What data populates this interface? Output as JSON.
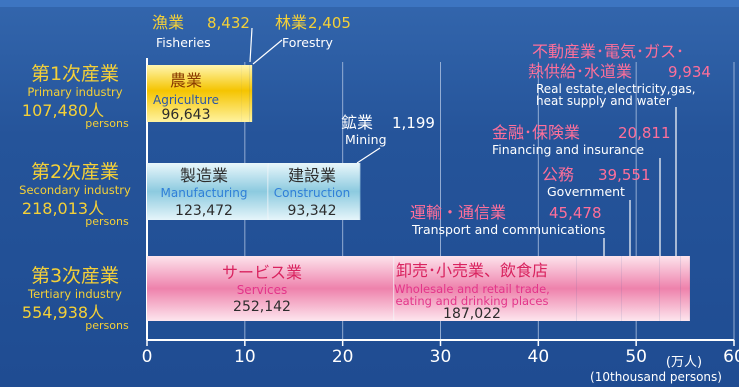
{
  "chart_data": {
    "type": "bar",
    "stacked": true,
    "orientation": "horizontal",
    "unit_label": "(万人)",
    "unit_label_en": "(10thousand persons)",
    "xlim": [
      0,
      60
    ],
    "x_ticks": [
      "0",
      "10",
      "20",
      "30",
      "40",
      "50",
      "60"
    ],
    "grid": "vertical",
    "categories": [
      {
        "jp": "第1次産業",
        "en": "Primary industry",
        "total": "107,480人",
        "persons": "persons"
      },
      {
        "jp": "第2次産業",
        "en": "Secondary industry",
        "total": "218,013人",
        "persons": "persons"
      },
      {
        "jp": "第3次産業",
        "en": "Tertiary industry",
        "total": "554,938人",
        "persons": "persons"
      }
    ],
    "segments": [
      {
        "row": 0,
        "jp": "農業",
        "en": "Agriculture",
        "value_label": "96,643",
        "value": 96643,
        "color": "#f2c200",
        "inside": true
      },
      {
        "row": 0,
        "jp": "漁業",
        "en": "Fisheries",
        "value_label": "8,432",
        "value": 8432,
        "color": "#f2c200",
        "inside": false
      },
      {
        "row": 0,
        "jp": "林業",
        "en": "Forestry",
        "value_label": "2,405",
        "value": 2405,
        "color": "#f2c200",
        "inside": false
      },
      {
        "row": 1,
        "jp": "製造業",
        "en": "Manufacturing",
        "value_label": "123,472",
        "value": 123472,
        "color": "#8fcbe0",
        "inside": true
      },
      {
        "row": 1,
        "jp": "建設業",
        "en": "Construction",
        "value_label": "93,342",
        "value": 93342,
        "color": "#8fcbe0",
        "inside": true
      },
      {
        "row": 1,
        "jp": "鉱業",
        "en": "Mining",
        "value_label": "1,199",
        "value": 1199,
        "color": "#8fcbe0",
        "inside": false
      },
      {
        "row": 2,
        "jp": "サービス業",
        "en": "Services",
        "value_label": "252,142",
        "value": 252142,
        "color": "#f08fb4",
        "inside": true
      },
      {
        "row": 2,
        "jp": "卸売･小売業、飲食店",
        "en": "Wholesale and retail trade, eating and drinking places",
        "value_label": "187,022",
        "value": 187022,
        "color": "#f08fb4",
        "inside": true
      },
      {
        "row": 2,
        "jp": "運輸・通信業",
        "en": "Transport and communications",
        "value_label": "45,478",
        "value": 45478,
        "color": "#f08fb4",
        "inside": false
      },
      {
        "row": 2,
        "jp": "公務",
        "en": "Government",
        "value_label": "39,551",
        "value": 39551,
        "color": "#f08fb4",
        "inside": false
      },
      {
        "row": 2,
        "jp": "金融･保険業",
        "en": "Financing and insurance",
        "value_label": "20,811",
        "value": 20811,
        "color": "#f08fb4",
        "inside": false
      },
      {
        "row": 2,
        "jp": "不動産業･電気･ガス･熱供給･水道業",
        "en": "Real estate,electricity,gas, heat supply and water",
        "value_label": "9,934",
        "value": 9934,
        "color": "#f08fb4",
        "inside": false
      }
    ]
  }
}
